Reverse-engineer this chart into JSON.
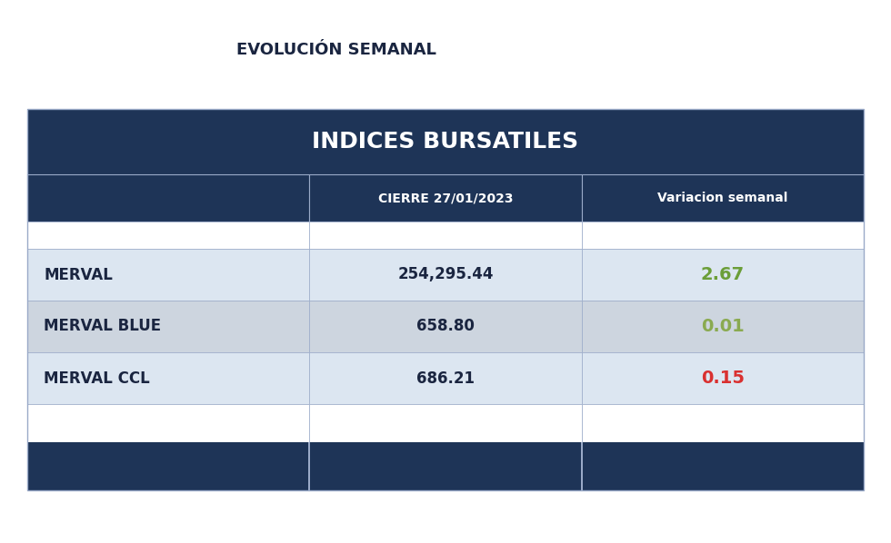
{
  "title": "EVOLUCIÓN SEMANAL",
  "table_title": "INDICES BURSATILES",
  "col_header_1": "CIERRE 27/01/2023",
  "col_header_2": "Variacion semanal",
  "rows": [
    {
      "label": "MERVAL",
      "cierre": "254,295.44",
      "variacion": "2.67",
      "var_color": "#6b9e38"
    },
    {
      "label": "MERVAL BLUE",
      "cierre": "658.80",
      "variacion": "0.01",
      "var_color": "#8aaa50"
    },
    {
      "label": "MERVAL CCL",
      "cierre": "686.21",
      "variacion": "0.15",
      "var_color": "#d93030"
    }
  ],
  "bg_color": "#ffffff",
  "dark_navy": "#1e3457",
  "col_header_bg": "#1e3457",
  "row_bg_light": "#dce6f1",
  "row_bg_alt": "#cdd5df",
  "row_bg_white": "#ffffff",
  "footer_bg": "#1e3457",
  "border_color": "#9aaac8",
  "text_white": "#ffffff",
  "text_dark": "#1a2540",
  "title_fontsize": 13,
  "table_title_fontsize": 18,
  "col_header_fontsize": 10,
  "cell_fontsize": 12,
  "figsize": [
    9.8,
    5.98
  ],
  "dpi": 100
}
